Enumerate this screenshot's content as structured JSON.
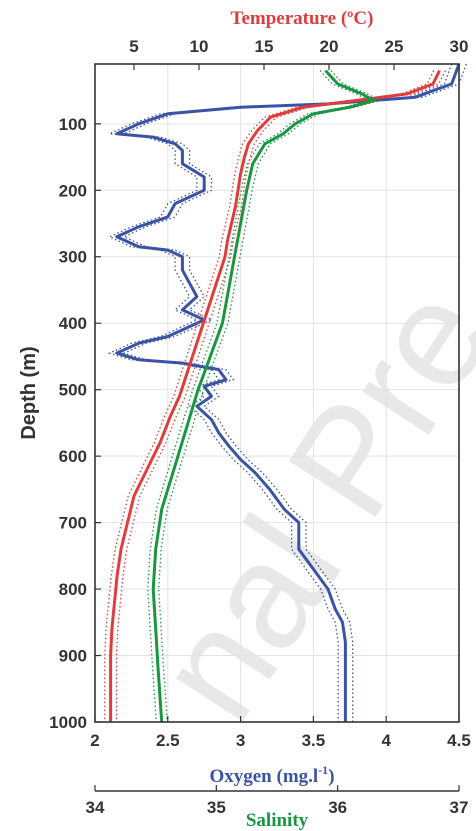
{
  "chart_data": {
    "type": "line",
    "watermark": "nal Pre",
    "y_axis": {
      "label": "Depth (m)",
      "range": [
        10,
        1000
      ],
      "reversed": true,
      "ticks": [
        100,
        200,
        300,
        400,
        500,
        600,
        700,
        800,
        900,
        1000
      ]
    },
    "axes": {
      "temperature": {
        "label": "Temperature (ºC)",
        "range": [
          2,
          30
        ],
        "ticks": [
          5,
          10,
          15,
          20,
          25,
          30
        ],
        "color": "#e03c3c"
      },
      "oxygen": {
        "label": "Oxygen (mg.l",
        "label_sup": "-1",
        "label_end": ")",
        "range": [
          2,
          4.5
        ],
        "ticks": [
          2,
          2.5,
          3,
          3.5,
          4,
          4.5
        ],
        "color": "#3a53a4"
      },
      "salinity": {
        "label": "Salinity",
        "range": [
          34,
          37
        ],
        "ticks": [
          34,
          35,
          36,
          37
        ],
        "color": "#1a9641"
      }
    },
    "grid": true,
    "series": [
      {
        "name": "Oxygen",
        "axis": "oxygen",
        "color": "#3a53a4",
        "points": [
          [
            4.5,
            10
          ],
          [
            4.45,
            40
          ],
          [
            4.2,
            60
          ],
          [
            3.6,
            70
          ],
          [
            3.0,
            75
          ],
          [
            2.5,
            85
          ],
          [
            2.3,
            100
          ],
          [
            2.15,
            115
          ],
          [
            2.4,
            120
          ],
          [
            2.55,
            130
          ],
          [
            2.6,
            140
          ],
          [
            2.6,
            160
          ],
          [
            2.75,
            180
          ],
          [
            2.75,
            200
          ],
          [
            2.55,
            220
          ],
          [
            2.5,
            240
          ],
          [
            2.3,
            255
          ],
          [
            2.15,
            270
          ],
          [
            2.3,
            285
          ],
          [
            2.5,
            290
          ],
          [
            2.6,
            300
          ],
          [
            2.6,
            320
          ],
          [
            2.65,
            340
          ],
          [
            2.7,
            360
          ],
          [
            2.6,
            380
          ],
          [
            2.75,
            395
          ],
          [
            2.6,
            410
          ],
          [
            2.5,
            420
          ],
          [
            2.3,
            430
          ],
          [
            2.15,
            445
          ],
          [
            2.3,
            455
          ],
          [
            2.6,
            460
          ],
          [
            2.85,
            470
          ],
          [
            2.9,
            485
          ],
          [
            2.75,
            495
          ],
          [
            2.8,
            510
          ],
          [
            2.7,
            525
          ],
          [
            2.8,
            545
          ],
          [
            2.85,
            565
          ],
          [
            2.92,
            585
          ],
          [
            3.0,
            605
          ],
          [
            3.1,
            625
          ],
          [
            3.2,
            650
          ],
          [
            3.3,
            680
          ],
          [
            3.4,
            700
          ],
          [
            3.4,
            720
          ],
          [
            3.4,
            740
          ],
          [
            3.5,
            770
          ],
          [
            3.6,
            800
          ],
          [
            3.65,
            830
          ],
          [
            3.7,
            850
          ],
          [
            3.72,
            880
          ],
          [
            3.72,
            910
          ],
          [
            3.72,
            940
          ],
          [
            3.72,
            970
          ],
          [
            3.72,
            1000
          ]
        ]
      },
      {
        "name": "Temperature",
        "axis": "temperature",
        "color": "#e03c3c",
        "points": [
          [
            28.5,
            20
          ],
          [
            28,
            40
          ],
          [
            26,
            55
          ],
          [
            22,
            65
          ],
          [
            18,
            75
          ],
          [
            15.5,
            90
          ],
          [
            14.5,
            110
          ],
          [
            13.8,
            130
          ],
          [
            13.5,
            150
          ],
          [
            13.2,
            175
          ],
          [
            13,
            200
          ],
          [
            12.8,
            225
          ],
          [
            12.5,
            250
          ],
          [
            12.2,
            275
          ],
          [
            12,
            300
          ],
          [
            11.5,
            330
          ],
          [
            11,
            360
          ],
          [
            10.5,
            390
          ],
          [
            10,
            420
          ],
          [
            9.5,
            450
          ],
          [
            9,
            480
          ],
          [
            8.5,
            510
          ],
          [
            7.8,
            540
          ],
          [
            7,
            580
          ],
          [
            6,
            620
          ],
          [
            5,
            660
          ],
          [
            4.5,
            700
          ],
          [
            4,
            740
          ],
          [
            3.7,
            780
          ],
          [
            3.5,
            820
          ],
          [
            3.3,
            860
          ],
          [
            3.2,
            900
          ],
          [
            3.2,
            940
          ],
          [
            3.2,
            1000
          ]
        ]
      },
      {
        "name": "Salinity",
        "axis": "salinity",
        "color": "#1a9641",
        "points": [
          [
            35.9,
            20
          ],
          [
            36.0,
            40
          ],
          [
            36.2,
            55
          ],
          [
            36.3,
            65
          ],
          [
            36.1,
            75
          ],
          [
            35.8,
            85
          ],
          [
            35.65,
            100
          ],
          [
            35.55,
            115
          ],
          [
            35.4,
            130
          ],
          [
            35.3,
            160
          ],
          [
            35.25,
            200
          ],
          [
            35.2,
            250
          ],
          [
            35.15,
            300
          ],
          [
            35.1,
            350
          ],
          [
            35.05,
            400
          ],
          [
            34.95,
            450
          ],
          [
            34.85,
            500
          ],
          [
            34.75,
            560
          ],
          [
            34.65,
            620
          ],
          [
            34.55,
            680
          ],
          [
            34.5,
            740
          ],
          [
            34.48,
            800
          ],
          [
            34.5,
            860
          ],
          [
            34.52,
            920
          ],
          [
            34.55,
            1000
          ]
        ]
      }
    ]
  }
}
